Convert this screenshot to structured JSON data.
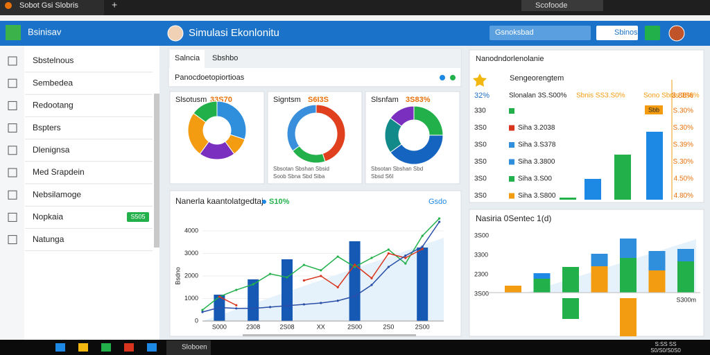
{
  "browser": {
    "tab": "Sobot Gsi Slobris",
    "address": "Scofoode"
  },
  "app": {
    "brand": "Bsinisav",
    "title": "Simulasi Ekonlonitu",
    "search": "Gsnoksbad",
    "button": "Sbinos"
  },
  "sidebar": {
    "items": [
      "Sbstelnous",
      "Sembedea",
      "Redootang",
      "Bspters",
      "Dlenignsa",
      "Med Srapdein",
      "Nebsilamoge",
      "Nopkaia",
      "Natunga"
    ],
    "badge": "S505"
  },
  "tabs": {
    "items": [
      "Salncia",
      "Sbshbo"
    ],
    "subtitle": "Panocdoetopiortioas"
  },
  "donuts": [
    {
      "title": "Slsotusm",
      "value_label": "33S70",
      "values": [
        30,
        10,
        20,
        25,
        15
      ],
      "colors": [
        "#2f8fdc",
        "#f39c12",
        "#7b2fbf",
        "#f39c12",
        "#22b04b"
      ],
      "legend": []
    },
    {
      "title": "Signtsm",
      "value_label": "S6I3S",
      "values": [
        45,
        20,
        35
      ],
      "colors": [
        "#e0401e",
        "#22b04b",
        "#3a8fdc"
      ],
      "legend": [
        "Sbsotan Sbshan Sbsid",
        "Soob Sbna Sbd Siba"
      ]
    },
    {
      "title": "Slsnfam",
      "value_label": "3S83%",
      "values": [
        25,
        40,
        20,
        15
      ],
      "colors": [
        "#22b04b",
        "#1565c0",
        "#138a8a",
        "#7b2fbf"
      ],
      "legend": [
        "Sbsotan Sbshan Sbd",
        "Sbsd S6I"
      ]
    }
  ],
  "trend": {
    "title": "Nanerla kaantolatgedtaj",
    "badge": "S10%",
    "action": "Gsdo",
    "ylabel": "Bsdno",
    "ylim": [
      0,
      4800
    ],
    "yticks": [
      0,
      1000,
      2000,
      3000,
      4000
    ],
    "categories": [
      null,
      "S000",
      null,
      "2308",
      null,
      "2S08",
      null,
      "XX",
      null,
      "2S00",
      null,
      "2S0",
      null,
      "2S00",
      null
    ],
    "bars": [
      null,
      1170,
      null,
      1850,
      null,
      2740,
      null,
      null,
      null,
      3540,
      null,
      null,
      null,
      3260,
      null
    ],
    "series": [
      {
        "name": "green",
        "color": "#22b04b",
        "values": [
          490,
          1080,
          1380,
          1630,
          2090,
          1940,
          2490,
          2250,
          2860,
          2400,
          2800,
          3170,
          2550,
          3780,
          4550
        ]
      },
      {
        "name": "red",
        "color": "#d9341e",
        "values": [
          null,
          1080,
          700,
          null,
          null,
          null,
          1800,
          2000,
          1500,
          2500,
          1900,
          3000,
          2800,
          3200,
          null
        ]
      },
      {
        "name": "blue",
        "color": "#2a4fa8",
        "values": [
          400,
          600,
          560,
          560,
          620,
          680,
          740,
          800,
          900,
          1100,
          1600,
          2400,
          2900,
          3300,
          4400
        ]
      }
    ]
  },
  "right_top": {
    "title": "Nanodndorlenolanie",
    "subtitle": "Sengeorengtem",
    "badge": "Sbb",
    "header": {
      "left": "32%",
      "labels": [
        "Slonalan 3S.S00%",
        "Sbnis SS3.S0%",
        "Sono Sbnis 3S8%"
      ],
      "right": "3.88%"
    },
    "rows": [
      {
        "left": "330",
        "color": "#22b04b",
        "label": "",
        "right": "S.30%"
      },
      {
        "left": "3S0",
        "color": "#d9341e",
        "label": "Siha 3.2038",
        "right": "S.30%"
      },
      {
        "left": "3S0",
        "color": "#2f8fdc",
        "label": "Siha 3.S378",
        "right": "S.39%"
      },
      {
        "left": "3S0",
        "color": "#2f8fdc",
        "label": "Siha 3.3800",
        "right": "S.30%"
      },
      {
        "left": "3S0",
        "color": "#22b04b",
        "label": "Siha 3.S00",
        "right": "4.50%"
      },
      {
        "left": "3S0",
        "color": "#f39c12",
        "label": "Siha 3.S800",
        "right": "4.80%"
      }
    ],
    "bars": [
      {
        "color": "#22b04b",
        "value": 3
      },
      {
        "color": "#1e88e5",
        "value": 30
      },
      {
        "color": "#22b04b",
        "value": 65
      },
      {
        "color": "#1e88e5",
        "value": 98
      }
    ]
  },
  "right_bottom": {
    "title": "Nasiria 0Sentec 1(d)",
    "ticks": [
      "3S00",
      "3300",
      "2300",
      "3S00"
    ],
    "right_label": "S300m",
    "columns": [
      {
        "segments": [
          {
            "color": "#f39c12",
            "value": 10
          }
        ]
      },
      {
        "segments": [
          {
            "color": "#22b04b",
            "value": 20
          },
          {
            "color": "#1e88e5",
            "value": 8
          }
        ]
      },
      {
        "segments": [
          {
            "color": "#22b04b",
            "value": 37
          },
          {
            "color": "#22b04b",
            "value": -30
          }
        ]
      },
      {
        "segments": [
          {
            "color": "#f39c12",
            "value": 38
          },
          {
            "color": "#2f8fdc",
            "value": 18
          }
        ]
      },
      {
        "segments": [
          {
            "color": "#22b04b",
            "value": 50
          },
          {
            "color": "#2f8fdc",
            "value": 28
          },
          {
            "color": "#f39c12",
            "value": -55
          }
        ]
      },
      {
        "segments": [
          {
            "color": "#f39c12",
            "value": 32
          },
          {
            "color": "#2f8fdc",
            "value": 28
          }
        ]
      },
      {
        "segments": [
          {
            "color": "#22b04b",
            "value": 45
          },
          {
            "color": "#2f8fdc",
            "value": 18
          }
        ]
      }
    ]
  },
  "taskbar": {
    "app": "Sloboen",
    "time": "S:SS SS",
    "date": "S0/S0/S0S0"
  }
}
